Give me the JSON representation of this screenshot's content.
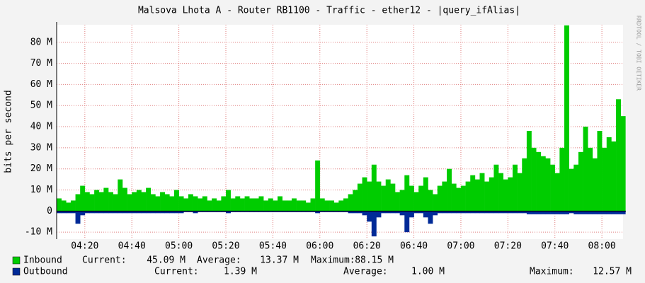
{
  "chart_data": {
    "type": "area",
    "title": "Malsova Lhota A - Router RB1100 - Traffic - ether12 - |query_ifAlias|",
    "ylabel": "bits per second",
    "side_text": "RRDTOOL / TOBI OETIKER",
    "x": [
      "04:08",
      "04:10",
      "04:12",
      "04:14",
      "04:16",
      "04:18",
      "04:20",
      "04:22",
      "04:24",
      "04:26",
      "04:28",
      "04:30",
      "04:32",
      "04:34",
      "04:36",
      "04:38",
      "04:40",
      "04:42",
      "04:44",
      "04:46",
      "04:48",
      "04:50",
      "04:52",
      "04:54",
      "04:56",
      "04:58",
      "05:00",
      "05:02",
      "05:04",
      "05:06",
      "05:08",
      "05:10",
      "05:12",
      "05:14",
      "05:16",
      "05:18",
      "05:20",
      "05:22",
      "05:24",
      "05:26",
      "05:28",
      "05:30",
      "05:32",
      "05:34",
      "05:36",
      "05:38",
      "05:40",
      "05:42",
      "05:44",
      "05:46",
      "05:48",
      "05:50",
      "05:52",
      "05:54",
      "05:56",
      "05:58",
      "06:00",
      "06:02",
      "06:04",
      "06:06",
      "06:08",
      "06:10",
      "06:12",
      "06:14",
      "06:16",
      "06:18",
      "06:20",
      "06:22",
      "06:24",
      "06:26",
      "06:28",
      "06:30",
      "06:32",
      "06:34",
      "06:36",
      "06:38",
      "06:40",
      "06:42",
      "06:44",
      "06:46",
      "06:48",
      "06:50",
      "06:52",
      "06:54",
      "06:56",
      "06:58",
      "07:00",
      "07:02",
      "07:04",
      "07:06",
      "07:08",
      "07:10",
      "07:12",
      "07:14",
      "07:16",
      "07:18",
      "07:20",
      "07:22",
      "07:24",
      "07:26",
      "07:28",
      "07:30",
      "07:32",
      "07:34",
      "07:36",
      "07:38",
      "07:40",
      "07:42",
      "07:44",
      "07:46",
      "07:48",
      "07:50",
      "07:52",
      "07:54",
      "07:56",
      "07:58",
      "08:00",
      "08:02",
      "08:04",
      "08:06",
      "08:08"
    ],
    "series": [
      {
        "name": "Inbound",
        "color": "#00cc00",
        "values": [
          6,
          5,
          4,
          5,
          8,
          12,
          9,
          8,
          10,
          9,
          11,
          9,
          8,
          15,
          11,
          8,
          9,
          10,
          9,
          11,
          8,
          7,
          9,
          8,
          7,
          10,
          7,
          6,
          8,
          7,
          6,
          7,
          5,
          6,
          5,
          7,
          10,
          6,
          7,
          6,
          7,
          6,
          6,
          7,
          5,
          6,
          5,
          7,
          5,
          5,
          6,
          5,
          5,
          4,
          6,
          24,
          6,
          5,
          5,
          4,
          5,
          6,
          8,
          10,
          13,
          16,
          14,
          22,
          14,
          12,
          15,
          13,
          9,
          10,
          17,
          12,
          9,
          12,
          16,
          10,
          8,
          12,
          14,
          20,
          13,
          11,
          12,
          14,
          17,
          15,
          18,
          14,
          16,
          22,
          18,
          15,
          16,
          22,
          18,
          25,
          38,
          30,
          28,
          26,
          25,
          22,
          18,
          30,
          88,
          20,
          22,
          28,
          40,
          30,
          25,
          38,
          30,
          35,
          33,
          53,
          45
        ],
        "stats": [
          [
            "Current:",
            "45.09 M"
          ],
          [
            "Average:",
            "13.37 M"
          ],
          [
            "Maximum:",
            "88.15 M"
          ]
        ]
      },
      {
        "name": "Outbound",
        "color": "#002a97",
        "values": [
          -1,
          -1,
          -1,
          -1,
          -6,
          -2,
          -1,
          -1,
          -1,
          -1,
          -1,
          -1,
          -1,
          -1,
          -1,
          -1,
          -1,
          -1,
          -1,
          -1,
          -1,
          -1,
          -1,
          -1,
          -1,
          -1,
          -1,
          -0.5,
          -0.5,
          -1,
          -0.5,
          -0.5,
          -0.5,
          -0.5,
          -0.5,
          -0.5,
          -1,
          -0.5,
          -0.5,
          -0.5,
          -0.5,
          -0.5,
          -0.5,
          -0.5,
          -0.5,
          -0.5,
          -0.5,
          -0.5,
          -0.5,
          -0.5,
          -0.5,
          -0.5,
          -0.5,
          -0.5,
          -0.5,
          -1,
          -0.5,
          -0.5,
          -0.5,
          -0.5,
          -0.5,
          -0.5,
          -1,
          -1,
          -1,
          -2,
          -5,
          -12,
          -3,
          -1,
          -1,
          -1,
          -1,
          -2,
          -10,
          -3,
          -1,
          -1,
          -3,
          -6,
          -2,
          -1,
          -1,
          -1,
          -1,
          -1,
          -1,
          -1,
          -1,
          -1,
          -1,
          -1,
          -1,
          -1,
          -1,
          -1,
          -1,
          -1,
          -1,
          -1,
          -1.5,
          -1.5,
          -1.5,
          -1.5,
          -1.5,
          -1.5,
          -1.5,
          -1.5,
          -1.5,
          -1,
          -1.5,
          -1.5,
          -1.5,
          -1.5,
          -1.5,
          -1.5,
          -1.5,
          -1.5,
          -1.5,
          -1.5,
          -1.5
        ],
        "stats": [
          [
            "Current:",
            "1.39 M"
          ],
          [
            "Average:",
            "1.00 M"
          ],
          [
            "Maximum:",
            "12.57 M"
          ]
        ]
      }
    ],
    "xlim": [
      "04:08",
      "08:09"
    ],
    "xticks": [
      "04:20",
      "04:40",
      "05:00",
      "05:20",
      "05:40",
      "06:00",
      "06:20",
      "06:40",
      "07:00",
      "07:20",
      "07:40",
      "08:00"
    ],
    "ylim": [
      -13.3,
      88.3
    ],
    "yticks": [
      {
        "value": -10,
        "label": "-10 M"
      },
      {
        "value": 0,
        "label": "0"
      },
      {
        "value": 10,
        "label": "10 M"
      },
      {
        "value": 20,
        "label": "20 M"
      },
      {
        "value": 30,
        "label": "30 M"
      },
      {
        "value": 40,
        "label": "40 M"
      },
      {
        "value": 50,
        "label": "50 M"
      },
      {
        "value": 60,
        "label": "60 M"
      },
      {
        "value": 70,
        "label": "70 M"
      },
      {
        "value": 80,
        "label": "80 M"
      }
    ],
    "grid": true
  }
}
